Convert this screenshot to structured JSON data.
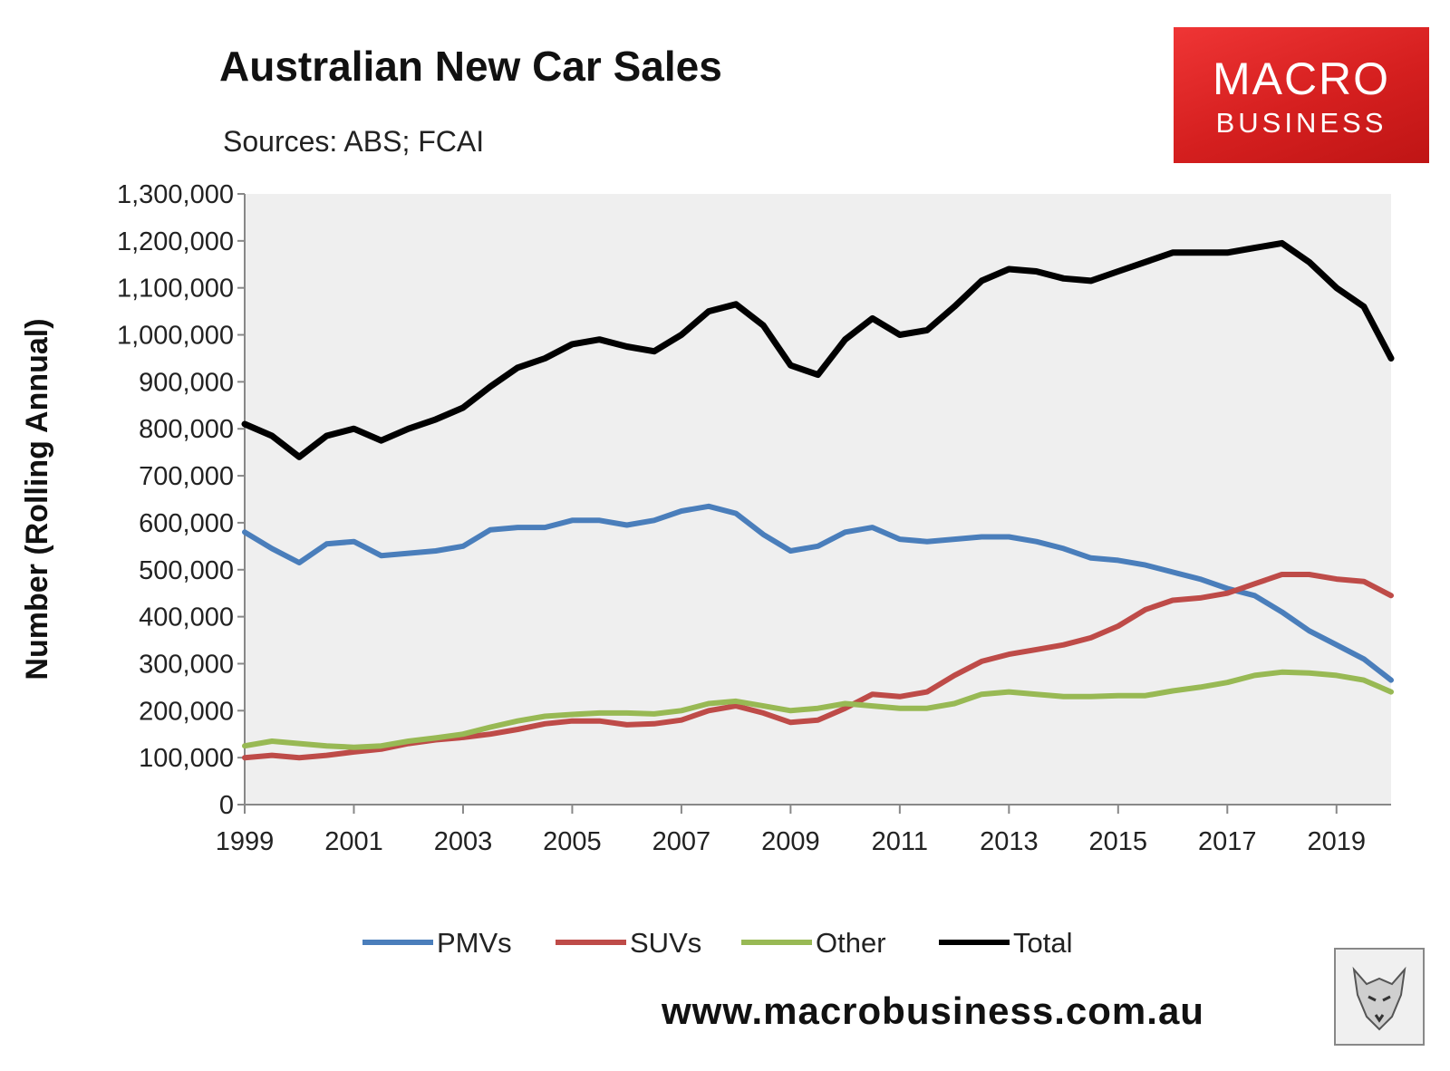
{
  "header": {
    "title": "Australian New Car Sales",
    "subtitle": "Sources: ABS; FCAI"
  },
  "logo": {
    "line1": "MACRO",
    "line2": "BUSINESS"
  },
  "footer": {
    "url": "www.macrobusiness.com.au"
  },
  "colors": {
    "PMVs": "#4a7ebb",
    "SUVs": "#be4b48",
    "Other": "#98b954",
    "Total": "#000000",
    "plot_bg": "#efefef"
  },
  "chart_data": {
    "type": "line",
    "title": "Australian New Car Sales",
    "ylabel": "Number (Rolling Annual)",
    "xlabel": "",
    "xlim": [
      1999,
      2020
    ],
    "ylim": [
      0,
      1300000
    ],
    "x_ticks": [
      "1999",
      "2001",
      "2003",
      "2005",
      "2007",
      "2009",
      "2011",
      "2013",
      "2015",
      "2017",
      "2019"
    ],
    "y_ticks": [
      "0",
      "100,000",
      "200,000",
      "300,000",
      "400,000",
      "500,000",
      "600,000",
      "700,000",
      "800,000",
      "900,000",
      "1,000,000",
      "1,100,000",
      "1,200,000",
      "1,300,000"
    ],
    "legend_position": "bottom",
    "grid": false,
    "x": [
      1999,
      1999.5,
      2000,
      2000.5,
      2001,
      2001.5,
      2002,
      2002.5,
      2003,
      2003.5,
      2004,
      2004.5,
      2005,
      2005.5,
      2006,
      2006.5,
      2007,
      2007.5,
      2008,
      2008.5,
      2009,
      2009.5,
      2010,
      2010.5,
      2011,
      2011.5,
      2012,
      2012.5,
      2013,
      2013.5,
      2014,
      2014.5,
      2015,
      2015.5,
      2016,
      2016.5,
      2017,
      2017.5,
      2018,
      2018.5,
      2019,
      2019.5,
      2020
    ],
    "series": [
      {
        "name": "PMVs",
        "values": [
          580000,
          545000,
          515000,
          555000,
          560000,
          530000,
          535000,
          540000,
          550000,
          585000,
          590000,
          590000,
          605000,
          605000,
          595000,
          605000,
          625000,
          635000,
          620000,
          575000,
          540000,
          550000,
          580000,
          590000,
          565000,
          560000,
          565000,
          570000,
          570000,
          560000,
          545000,
          525000,
          520000,
          510000,
          495000,
          480000,
          460000,
          445000,
          410000,
          370000,
          340000,
          310000,
          265000
        ]
      },
      {
        "name": "SUVs",
        "values": [
          100000,
          105000,
          100000,
          105000,
          112000,
          118000,
          130000,
          138000,
          143000,
          150000,
          160000,
          172000,
          178000,
          178000,
          170000,
          172000,
          180000,
          200000,
          210000,
          195000,
          175000,
          180000,
          205000,
          235000,
          230000,
          240000,
          275000,
          305000,
          320000,
          330000,
          340000,
          355000,
          380000,
          415000,
          435000,
          440000,
          450000,
          470000,
          490000,
          490000,
          480000,
          475000,
          445000
        ]
      },
      {
        "name": "Other",
        "values": [
          125000,
          135000,
          130000,
          125000,
          122000,
          125000,
          135000,
          142000,
          150000,
          165000,
          178000,
          188000,
          192000,
          195000,
          195000,
          193000,
          200000,
          215000,
          220000,
          210000,
          200000,
          205000,
          215000,
          210000,
          205000,
          205000,
          215000,
          235000,
          240000,
          235000,
          230000,
          230000,
          232000,
          232000,
          242000,
          250000,
          260000,
          275000,
          282000,
          280000,
          275000,
          265000,
          240000
        ]
      },
      {
        "name": "Total",
        "values": [
          810000,
          785000,
          740000,
          785000,
          800000,
          775000,
          800000,
          820000,
          845000,
          890000,
          930000,
          950000,
          980000,
          990000,
          975000,
          965000,
          1000000,
          1050000,
          1065000,
          1020000,
          935000,
          915000,
          990000,
          1035000,
          1000000,
          1010000,
          1060000,
          1115000,
          1140000,
          1135000,
          1120000,
          1115000,
          1135000,
          1155000,
          1175000,
          1175000,
          1175000,
          1185000,
          1195000,
          1155000,
          1100000,
          1060000,
          950000
        ]
      }
    ]
  }
}
